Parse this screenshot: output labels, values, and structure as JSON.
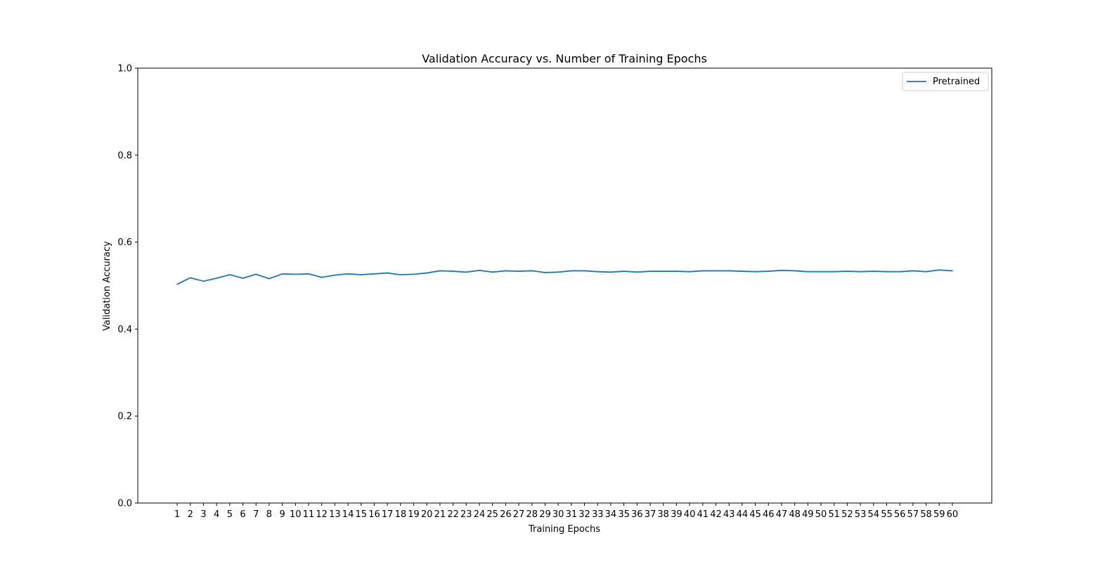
{
  "chart_data": {
    "type": "line",
    "title": "Validation Accuracy vs. Number of Training Epochs",
    "xlabel": "Training Epochs",
    "ylabel": "Validation Accuracy",
    "ylim": [
      0,
      1.0
    ],
    "xlim": [
      -2,
      63
    ],
    "y_ticks": [
      "0.0",
      "0.2",
      "0.4",
      "0.6",
      "0.8",
      "1.0"
    ],
    "y_tick_values": [
      0,
      0.2,
      0.4,
      0.6,
      0.8,
      1.0
    ],
    "x": [
      1,
      2,
      3,
      4,
      5,
      6,
      7,
      8,
      9,
      10,
      11,
      12,
      13,
      14,
      15,
      16,
      17,
      18,
      19,
      20,
      21,
      22,
      23,
      24,
      25,
      26,
      27,
      28,
      29,
      30,
      31,
      32,
      33,
      34,
      35,
      36,
      37,
      38,
      39,
      40,
      41,
      42,
      43,
      44,
      45,
      46,
      47,
      48,
      49,
      50,
      51,
      52,
      53,
      54,
      55,
      56,
      57,
      58,
      59,
      60
    ],
    "legend_position": "top-right",
    "grid": false,
    "series": [
      {
        "name": "Pretrained",
        "color": "#1f77b4",
        "values": [
          0.503,
          0.518,
          0.51,
          0.517,
          0.525,
          0.517,
          0.526,
          0.516,
          0.527,
          0.526,
          0.527,
          0.519,
          0.524,
          0.527,
          0.525,
          0.527,
          0.529,
          0.525,
          0.526,
          0.529,
          0.534,
          0.533,
          0.531,
          0.535,
          0.531,
          0.534,
          0.533,
          0.534,
          0.53,
          0.531,
          0.534,
          0.534,
          0.532,
          0.531,
          0.533,
          0.531,
          0.533,
          0.533,
          0.533,
          0.532,
          0.534,
          0.534,
          0.534,
          0.533,
          0.532,
          0.533,
          0.535,
          0.534,
          0.532,
          0.532,
          0.532,
          0.533,
          0.532,
          0.533,
          0.532,
          0.532,
          0.534,
          0.532,
          0.536,
          0.534
        ]
      }
    ]
  }
}
